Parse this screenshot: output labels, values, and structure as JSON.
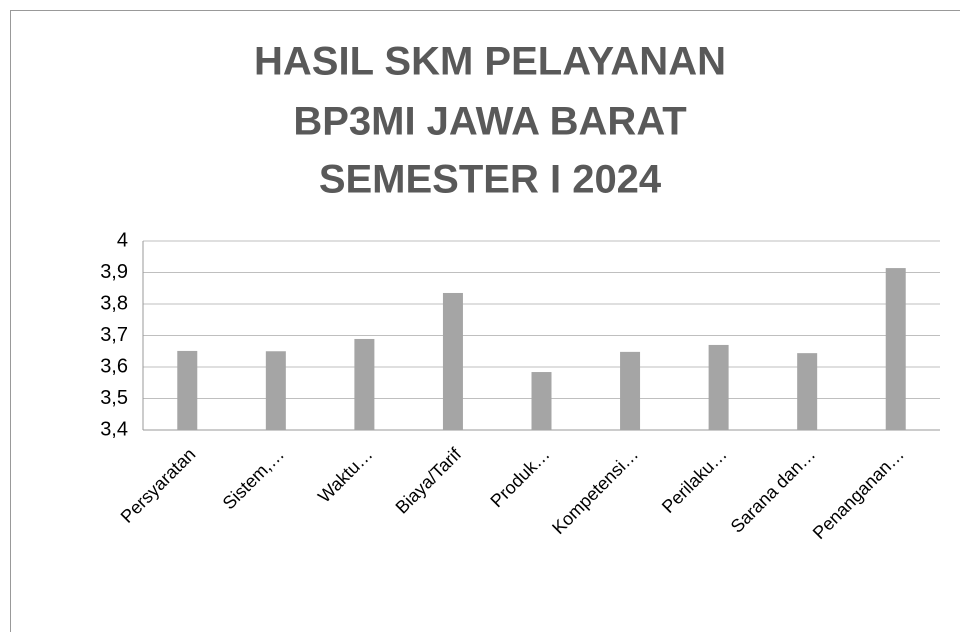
{
  "chart_data": {
    "type": "bar",
    "title": [
      "HASIL SKM PELAYANAN",
      "BP3MI JAWA BARAT",
      "SEMESTER I 2024"
    ],
    "categories": [
      "Persyaratan",
      "Sistem,…",
      "Waktu…",
      "Biaya/Tarif",
      "Produk…",
      "Kompetensi…",
      "Perilaku…",
      "Sarana dan…",
      "Penanganan…"
    ],
    "values": [
      3.651,
      3.65,
      3.689,
      3.835,
      3.584,
      3.648,
      3.67,
      3.644,
      3.914
    ],
    "color": "#a5a5a5",
    "ylim": [
      3.4,
      4
    ],
    "yticks": [
      {
        "value": 3.4,
        "label": "3,4"
      },
      {
        "value": 3.5,
        "label": "3,5"
      },
      {
        "value": 3.6,
        "label": "3,6"
      },
      {
        "value": 3.7,
        "label": "3,7"
      },
      {
        "value": 3.8,
        "label": "3,8"
      },
      {
        "value": 3.9,
        "label": "3,9"
      },
      4
    ],
    "grid": true
  }
}
